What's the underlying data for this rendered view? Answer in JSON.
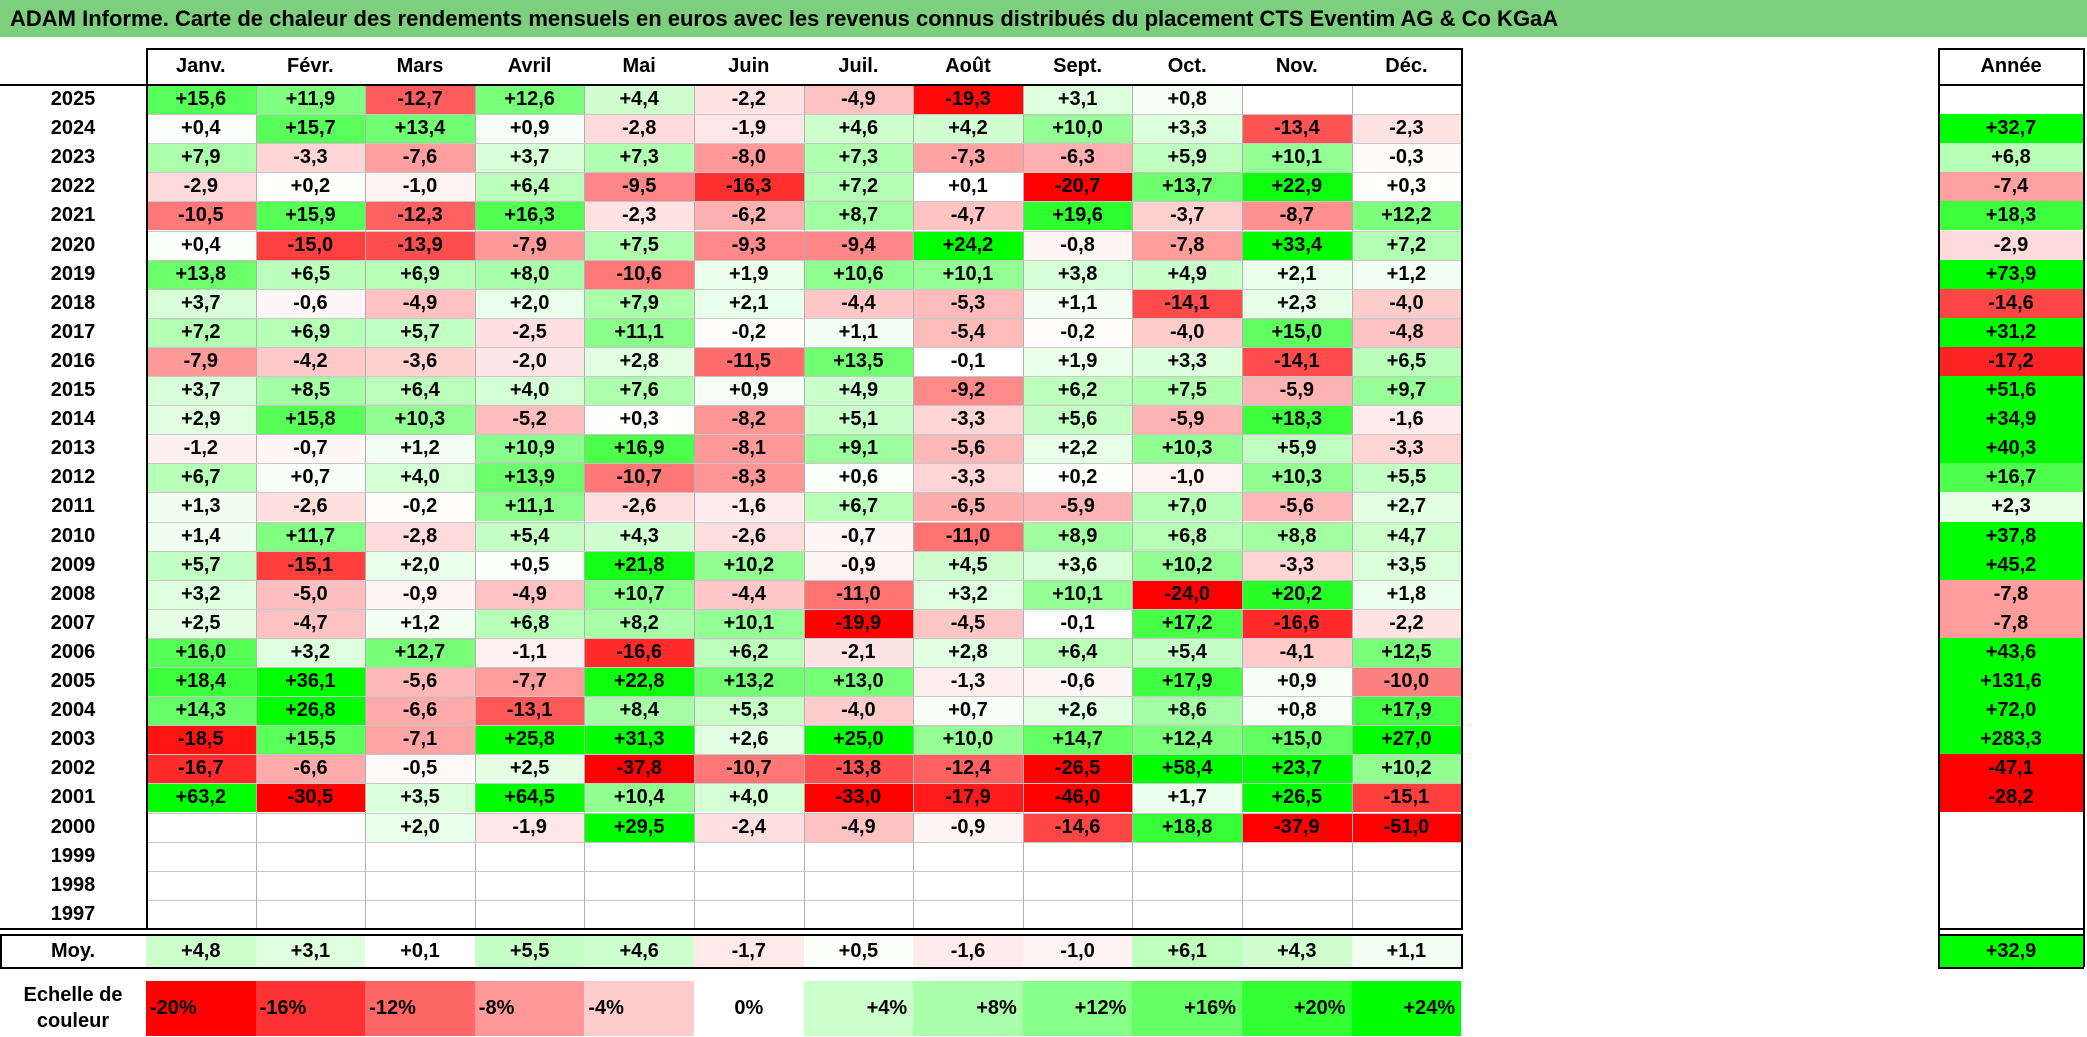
{
  "title": "ADAM Informe. Carte de chaleur des rendements mensuels en euros avec les revenus connus distribués du placement CTS Eventim AG & Co KGaA",
  "chart_data": {
    "type": "heatmap",
    "title": "ADAM Informe. Carte de chaleur des rendements mensuels en euros avec les revenus connus distribués du placement CTS Eventim AG & Co KGaA",
    "months": [
      "Janv.",
      "Févr.",
      "Mars",
      "Avril",
      "Mai",
      "Juin",
      "Juil.",
      "Août",
      "Sept.",
      "Oct.",
      "Nov.",
      "Déc."
    ],
    "year_header": "Année",
    "rows": [
      {
        "year": "2025",
        "values": [
          "+15,6",
          "+11,9",
          "-12,7",
          "+12,6",
          "+4,4",
          "-2,2",
          "-4,9",
          "-19,3",
          "+3,1",
          "+0,8",
          "",
          ""
        ],
        "annual": ""
      },
      {
        "year": "2024",
        "values": [
          "+0,4",
          "+15,7",
          "+13,4",
          "+0,9",
          "-2,8",
          "-1,9",
          "+4,6",
          "+4,2",
          "+10,0",
          "+3,3",
          "-13,4",
          "-2,3"
        ],
        "annual": "+32,7"
      },
      {
        "year": "2023",
        "values": [
          "+7,9",
          "-3,3",
          "-7,6",
          "+3,7",
          "+7,3",
          "-8,0",
          "+7,3",
          "-7,3",
          "-6,3",
          "+5,9",
          "+10,1",
          "-0,3"
        ],
        "annual": "+6,8"
      },
      {
        "year": "2022",
        "values": [
          "-2,9",
          "+0,2",
          "-1,0",
          "+6,4",
          "-9,5",
          "-16,3",
          "+7,2",
          "+0,1",
          "-20,7",
          "+13,7",
          "+22,9",
          "+0,3"
        ],
        "annual": "-7,4"
      },
      {
        "year": "2021",
        "values": [
          "-10,5",
          "+15,9",
          "-12,3",
          "+16,3",
          "-2,3",
          "-6,2",
          "+8,7",
          "-4,7",
          "+19,6",
          "-3,7",
          "-8,7",
          "+12,2"
        ],
        "annual": "+18,3"
      },
      {
        "year": "2020",
        "values": [
          "+0,4",
          "-15,0",
          "-13,9",
          "-7,9",
          "+7,5",
          "-9,3",
          "-9,4",
          "+24,2",
          "-0,8",
          "-7,8",
          "+33,4",
          "+7,2"
        ],
        "annual": "-2,9"
      },
      {
        "year": "2019",
        "values": [
          "+13,8",
          "+6,5",
          "+6,9",
          "+8,0",
          "-10,6",
          "+1,9",
          "+10,6",
          "+10,1",
          "+3,8",
          "+4,9",
          "+2,1",
          "+1,2"
        ],
        "annual": "+73,9"
      },
      {
        "year": "2018",
        "values": [
          "+3,7",
          "-0,6",
          "-4,9",
          "+2,0",
          "+7,9",
          "+2,1",
          "-4,4",
          "-5,3",
          "+1,1",
          "-14,1",
          "+2,3",
          "-4,0"
        ],
        "annual": "-14,6"
      },
      {
        "year": "2017",
        "values": [
          "+7,2",
          "+6,9",
          "+5,7",
          "-2,5",
          "+11,1",
          "-0,2",
          "+1,1",
          "-5,4",
          "-0,2",
          "-4,0",
          "+15,0",
          "-4,8"
        ],
        "annual": "+31,2"
      },
      {
        "year": "2016",
        "values": [
          "-7,9",
          "-4,2",
          "-3,6",
          "-2,0",
          "+2,8",
          "-11,5",
          "+13,5",
          "-0,1",
          "+1,9",
          "+3,3",
          "-14,1",
          "+6,5"
        ],
        "annual": "-17,2"
      },
      {
        "year": "2015",
        "values": [
          "+3,7",
          "+8,5",
          "+6,4",
          "+4,0",
          "+7,6",
          "+0,9",
          "+4,9",
          "-9,2",
          "+6,2",
          "+7,5",
          "-5,9",
          "+9,7"
        ],
        "annual": "+51,6"
      },
      {
        "year": "2014",
        "values": [
          "+2,9",
          "+15,8",
          "+10,3",
          "-5,2",
          "+0,3",
          "-8,2",
          "+5,1",
          "-3,3",
          "+5,6",
          "-5,9",
          "+18,3",
          "-1,6"
        ],
        "annual": "+34,9"
      },
      {
        "year": "2013",
        "values": [
          "-1,2",
          "-0,7",
          "+1,2",
          "+10,9",
          "+16,9",
          "-8,1",
          "+9,1",
          "-5,6",
          "+2,2",
          "+10,3",
          "+5,9",
          "-3,3"
        ],
        "annual": "+40,3"
      },
      {
        "year": "2012",
        "values": [
          "+6,7",
          "+0,7",
          "+4,0",
          "+13,9",
          "-10,7",
          "-8,3",
          "+0,6",
          "-3,3",
          "+0,2",
          "-1,0",
          "+10,3",
          "+5,5"
        ],
        "annual": "+16,7"
      },
      {
        "year": "2011",
        "values": [
          "+1,3",
          "-2,6",
          "-0,2",
          "+11,1",
          "-2,6",
          "-1,6",
          "+6,7",
          "-6,5",
          "-5,9",
          "+7,0",
          "-5,6",
          "+2,7"
        ],
        "annual": "+2,3"
      },
      {
        "year": "2010",
        "values": [
          "+1,4",
          "+11,7",
          "-2,8",
          "+5,4",
          "+4,3",
          "-2,6",
          "-0,7",
          "-11,0",
          "+8,9",
          "+6,8",
          "+8,8",
          "+4,7"
        ],
        "annual": "+37,8"
      },
      {
        "year": "2009",
        "values": [
          "+5,7",
          "-15,1",
          "+2,0",
          "+0,5",
          "+21,8",
          "+10,2",
          "-0,9",
          "+4,5",
          "+3,6",
          "+10,2",
          "-3,3",
          "+3,5"
        ],
        "annual": "+45,2"
      },
      {
        "year": "2008",
        "values": [
          "+3,2",
          "-5,0",
          "-0,9",
          "-4,9",
          "+10,7",
          "-4,4",
          "-11,0",
          "+3,2",
          "+10,1",
          "-24,0",
          "+20,2",
          "+1,8"
        ],
        "annual": "-7,8"
      },
      {
        "year": "2007",
        "values": [
          "+2,5",
          "-4,7",
          "+1,2",
          "+6,8",
          "+8,2",
          "+10,1",
          "-19,9",
          "-4,5",
          "-0,1",
          "+17,2",
          "-16,6",
          "-2,2"
        ],
        "annual": "-7,8"
      },
      {
        "year": "2006",
        "values": [
          "+16,0",
          "+3,2",
          "+12,7",
          "-1,1",
          "-16,6",
          "+6,2",
          "-2,1",
          "+2,8",
          "+6,4",
          "+5,4",
          "-4,1",
          "+12,5"
        ],
        "annual": "+43,6"
      },
      {
        "year": "2005",
        "values": [
          "+18,4",
          "+36,1",
          "-5,6",
          "-7,7",
          "+22,8",
          "+13,2",
          "+13,0",
          "-1,3",
          "-0,6",
          "+17,9",
          "+0,9",
          "-10,0"
        ],
        "annual": "+131,6"
      },
      {
        "year": "2004",
        "values": [
          "+14,3",
          "+26,8",
          "-6,6",
          "-13,1",
          "+8,4",
          "+5,3",
          "-4,0",
          "+0,7",
          "+2,6",
          "+8,6",
          "+0,8",
          "+17,9"
        ],
        "annual": "+72,0"
      },
      {
        "year": "2003",
        "values": [
          "-18,5",
          "+15,5",
          "-7,1",
          "+25,8",
          "+31,3",
          "+2,6",
          "+25,0",
          "+10,0",
          "+14,7",
          "+12,4",
          "+15,0",
          "+27,0"
        ],
        "annual": "+283,3"
      },
      {
        "year": "2002",
        "values": [
          "-16,7",
          "-6,6",
          "-0,5",
          "+2,5",
          "-37,8",
          "-10,7",
          "-13,8",
          "-12,4",
          "-26,5",
          "+58,4",
          "+23,7",
          "+10,2"
        ],
        "annual": "-47,1"
      },
      {
        "year": "2001",
        "values": [
          "+63,2",
          "-30,5",
          "+3,5",
          "+64,5",
          "+10,4",
          "+4,0",
          "-33,0",
          "-17,9",
          "-46,0",
          "+1,7",
          "+26,5",
          "-15,1"
        ],
        "annual": "-28,2"
      },
      {
        "year": "2000",
        "values": [
          "",
          "",
          "+2,0",
          "-1,9",
          "+29,5",
          "-2,4",
          "-4,9",
          "-0,9",
          "-14,6",
          "+18,8",
          "-37,9",
          "-51,0"
        ],
        "annual": ""
      },
      {
        "year": "1999",
        "values": [
          "",
          "",
          "",
          "",
          "",
          "",
          "",
          "",
          "",
          "",
          "",
          ""
        ],
        "annual": ""
      },
      {
        "year": "1998",
        "values": [
          "",
          "",
          "",
          "",
          "",
          "",
          "",
          "",
          "",
          "",
          "",
          ""
        ],
        "annual": ""
      },
      {
        "year": "1997",
        "values": [
          "",
          "",
          "",
          "",
          "",
          "",
          "",
          "",
          "",
          "",
          "",
          ""
        ],
        "annual": ""
      }
    ],
    "average": {
      "label": "Moy.",
      "values": [
        "+4,8",
        "+3,1",
        "+0,1",
        "+5,5",
        "+4,6",
        "-1,7",
        "+0,5",
        "-1,6",
        "-1,0",
        "+6,1",
        "+4,3",
        "+1,1"
      ],
      "annual": "+32,9"
    },
    "color_scale": {
      "label_line1": "Echelle de",
      "label_line2": "couleur",
      "stops": [
        {
          "label": "-20%",
          "value": -20,
          "color": "#ff0000"
        },
        {
          "label": "-16%",
          "value": -16,
          "color": "#ff3333"
        },
        {
          "label": "-12%",
          "value": -12,
          "color": "#ff6666"
        },
        {
          "label": "-8%",
          "value": -8,
          "color": "#ff9999"
        },
        {
          "label": "-4%",
          "value": -4,
          "color": "#ffcccc"
        },
        {
          "label": "0%",
          "value": 0,
          "color": "#ffffff"
        },
        {
          "label": "+4%",
          "value": 4,
          "color": "#ccffcc"
        },
        {
          "label": "+8%",
          "value": 8,
          "color": "#aaffaa"
        },
        {
          "label": "+12%",
          "value": 12,
          "color": "#88ff88"
        },
        {
          "label": "+16%",
          "value": 16,
          "color": "#66ff66"
        },
        {
          "label": "+20%",
          "value": 20,
          "color": "#33ff33"
        },
        {
          "label": "+24%",
          "value": 24,
          "color": "#00ff00"
        }
      ]
    }
  }
}
